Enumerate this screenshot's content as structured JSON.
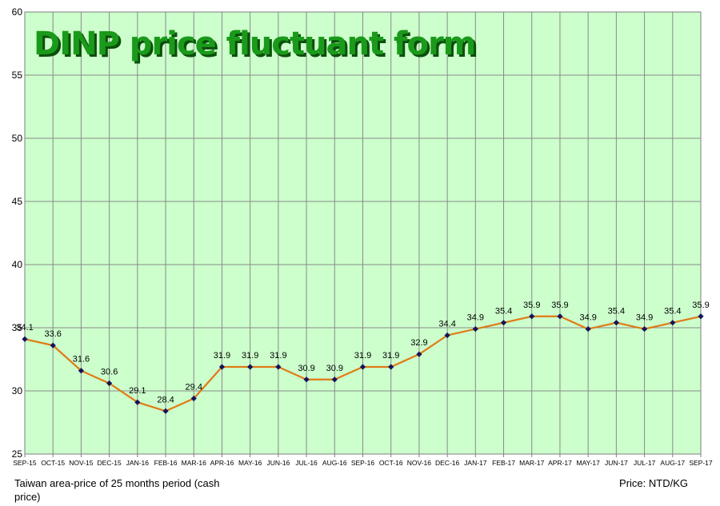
{
  "chart_data": {
    "type": "line",
    "title": "DINP price fluctuant form",
    "categories": [
      "SEP-15",
      "OCT-15",
      "NOV-15",
      "DEC-15",
      "JAN-16",
      "FEB-16",
      "MAR-16",
      "APR-16",
      "MAY-16",
      "JUN-16",
      "JUL-16",
      "AUG-16",
      "SEP-16",
      "OCT-16",
      "NOV-16",
      "DEC-16",
      "JAN-17",
      "FEB-17",
      "MAR-17",
      "APR-17",
      "MAY-17",
      "JUN-17",
      "JUL-17",
      "AUG-17",
      "SEP-17"
    ],
    "values": [
      34.1,
      33.6,
      31.6,
      30.6,
      29.1,
      28.4,
      29.4,
      31.9,
      31.9,
      31.9,
      30.9,
      30.9,
      31.9,
      31.9,
      32.9,
      34.4,
      34.9,
      35.4,
      35.9,
      35.9,
      34.9,
      35.4,
      34.9,
      35.4,
      35.9
    ],
    "ylim": [
      25,
      60
    ],
    "yticks": [
      "25",
      "30",
      "35",
      "40",
      "45",
      "50",
      "55",
      "60"
    ],
    "grid": true,
    "line_color": "#e07a16",
    "marker_color": "#14145a",
    "plot_background": "#ccffcc",
    "gridline_color": "#8a8a8a"
  },
  "footnotes": {
    "left": "Taiwan area-price of 25 months period (cash price)",
    "right": "Price: NTD/KG"
  }
}
